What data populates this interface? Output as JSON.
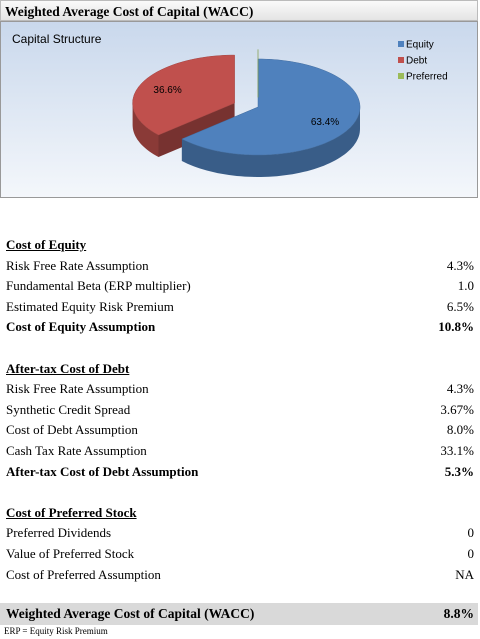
{
  "header": {
    "title": "Weighted Average Cost of Capital (WACC)"
  },
  "chart_data": {
    "type": "pie",
    "title": "Capital Structure",
    "categories": [
      "Equity",
      "Debt",
      "Preferred"
    ],
    "values": [
      63.4,
      36.6,
      0
    ],
    "value_labels": [
      "63.4%",
      "36.6%",
      null
    ],
    "colors": [
      "#4f81bd",
      "#c0504d",
      "#9bbb59"
    ],
    "legend": "right"
  },
  "sections": [
    {
      "title": "Cost of Equity",
      "rows": [
        [
          "Risk Free Rate Assumption",
          "4.3%"
        ],
        [
          "Fundamental Beta (ERP multiplier)",
          "1.0"
        ],
        [
          "Estimated Equity Risk Premium",
          "6.5%"
        ]
      ],
      "total": [
        "Cost of Equity Assumption",
        "10.8%"
      ]
    },
    {
      "title": "After-tax Cost of Debt",
      "rows": [
        [
          "Risk Free Rate Assumption",
          "4.3%"
        ],
        [
          "Synthetic Credit Spread",
          "3.67%"
        ],
        [
          "Cost of Debt Assumption",
          "8.0%"
        ],
        [
          "Cash Tax Rate Assumption",
          "33.1%"
        ]
      ],
      "total": [
        "After-tax Cost of Debt Assumption",
        "5.3%"
      ]
    },
    {
      "title": "Cost of Preferred Stock",
      "rows": [
        [
          "Preferred Dividends",
          "0"
        ],
        [
          "Value of Preferred Stock",
          "0"
        ],
        [
          "Cost of Preferred Assumption",
          "NA"
        ]
      ]
    }
  ],
  "footer": {
    "label": "Weighted Average Cost of Capital (WACC)",
    "value": "8.8%"
  },
  "footnote": "ERP = Equity Risk Premium"
}
